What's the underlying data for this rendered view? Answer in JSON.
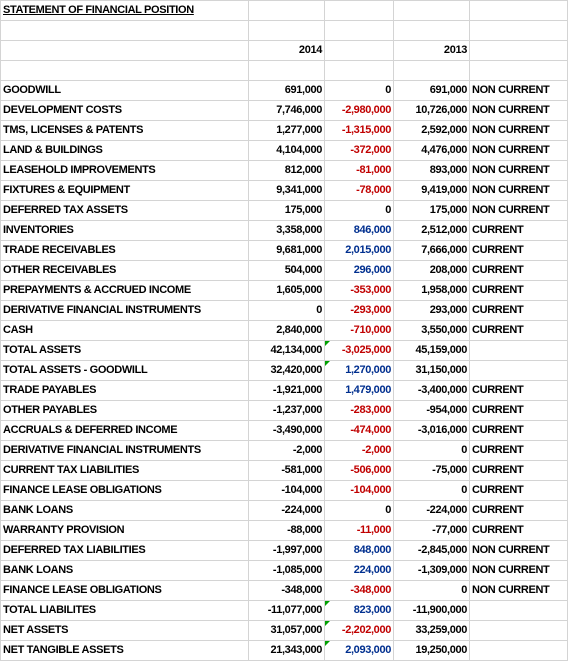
{
  "sheet": {
    "title": "STATEMENT OF FINANCIAL POSITION",
    "header": {
      "col_2014": "2014",
      "col_2013": "2013"
    },
    "rows": [
      {
        "label": "GOODWILL",
        "y2014": "691,000",
        "change": "0",
        "y2013": "691,000",
        "class": "NON CURRENT",
        "tone": "zero",
        "flag": false
      },
      {
        "label": "DEVELOPMENT COSTS",
        "y2014": "7,746,000",
        "change": "-2,980,000",
        "y2013": "10,726,000",
        "class": "NON CURRENT",
        "tone": "neg",
        "flag": false
      },
      {
        "label": "TMS, LICENSES & PATENTS",
        "y2014": "1,277,000",
        "change": "-1,315,000",
        "y2013": "2,592,000",
        "class": "NON CURRENT",
        "tone": "neg",
        "flag": false
      },
      {
        "label": "LAND & BUILDINGS",
        "y2014": "4,104,000",
        "change": "-372,000",
        "y2013": "4,476,000",
        "class": "NON CURRENT",
        "tone": "neg",
        "flag": false
      },
      {
        "label": "LEASEHOLD IMPROVEMENTS",
        "y2014": "812,000",
        "change": "-81,000",
        "y2013": "893,000",
        "class": "NON CURRENT",
        "tone": "neg",
        "flag": false
      },
      {
        "label": "FIXTURES & EQUIPMENT",
        "y2014": "9,341,000",
        "change": "-78,000",
        "y2013": "9,419,000",
        "class": "NON CURRENT",
        "tone": "neg",
        "flag": false
      },
      {
        "label": "DEFERRED TAX ASSETS",
        "y2014": "175,000",
        "change": "0",
        "y2013": "175,000",
        "class": "NON CURRENT",
        "tone": "zero",
        "flag": false
      },
      {
        "label": "INVENTORIES",
        "y2014": "3,358,000",
        "change": "846,000",
        "y2013": "2,512,000",
        "class": "CURRENT",
        "tone": "pos",
        "flag": false
      },
      {
        "label": "TRADE RECEIVABLES",
        "y2014": "9,681,000",
        "change": "2,015,000",
        "y2013": "7,666,000",
        "class": "CURRENT",
        "tone": "pos",
        "flag": false
      },
      {
        "label": "OTHER RECEIVABLES",
        "y2014": "504,000",
        "change": "296,000",
        "y2013": "208,000",
        "class": "CURRENT",
        "tone": "pos",
        "flag": false
      },
      {
        "label": "PREPAYMENTS & ACCRUED INCOME",
        "y2014": "1,605,000",
        "change": "-353,000",
        "y2013": "1,958,000",
        "class": "CURRENT",
        "tone": "neg",
        "flag": false
      },
      {
        "label": "DERIVATIVE FINANCIAL INSTRUMENTS",
        "y2014": "0",
        "change": "-293,000",
        "y2013": "293,000",
        "class": "CURRENT",
        "tone": "neg",
        "flag": false
      },
      {
        "label": "CASH",
        "y2014": "2,840,000",
        "change": "-710,000",
        "y2013": "3,550,000",
        "class": "CURRENT",
        "tone": "neg",
        "flag": false
      },
      {
        "label": "TOTAL ASSETS",
        "y2014": "42,134,000",
        "change": "-3,025,000",
        "y2013": "45,159,000",
        "class": "",
        "tone": "neg",
        "flag": true
      },
      {
        "label": "TOTAL ASSETS - GOODWILL",
        "y2014": "32,420,000",
        "change": "1,270,000",
        "y2013": "31,150,000",
        "class": "",
        "tone": "pos",
        "flag": true
      },
      {
        "label": "TRADE PAYABLES",
        "y2014": "-1,921,000",
        "change": "1,479,000",
        "y2013": "-3,400,000",
        "class": "CURRENT",
        "tone": "pos",
        "flag": false
      },
      {
        "label": "OTHER PAYABLES",
        "y2014": "-1,237,000",
        "change": "-283,000",
        "y2013": "-954,000",
        "class": "CURRENT",
        "tone": "neg",
        "flag": false
      },
      {
        "label": "ACCRUALS & DEFERRED INCOME",
        "y2014": "-3,490,000",
        "change": "-474,000",
        "y2013": "-3,016,000",
        "class": "CURRENT",
        "tone": "neg",
        "flag": false
      },
      {
        "label": "DERIVATIVE FINANCIAL INSTRUMENTS",
        "y2014": "-2,000",
        "change": "-2,000",
        "y2013": "0",
        "class": "CURRENT",
        "tone": "neg",
        "flag": false
      },
      {
        "label": "CURRENT TAX LIABILITIES",
        "y2014": "-581,000",
        "change": "-506,000",
        "y2013": "-75,000",
        "class": "CURRENT",
        "tone": "neg",
        "flag": false
      },
      {
        "label": "FINANCE LEASE OBLIGATIONS",
        "y2014": "-104,000",
        "change": "-104,000",
        "y2013": "0",
        "class": "CURRENT",
        "tone": "neg",
        "flag": false
      },
      {
        "label": "BANK LOANS",
        "y2014": "-224,000",
        "change": "0",
        "y2013": "-224,000",
        "class": "CURRENT",
        "tone": "zero",
        "flag": false
      },
      {
        "label": "WARRANTY PROVISION",
        "y2014": "-88,000",
        "change": "-11,000",
        "y2013": "-77,000",
        "class": "CURRENT",
        "tone": "neg",
        "flag": false
      },
      {
        "label": "DEFERRED TAX LIABILITIES",
        "y2014": "-1,997,000",
        "change": "848,000",
        "y2013": "-2,845,000",
        "class": "NON CURRENT",
        "tone": "pos",
        "flag": false
      },
      {
        "label": "BANK LOANS",
        "y2014": "-1,085,000",
        "change": "224,000",
        "y2013": "-1,309,000",
        "class": "NON CURRENT",
        "tone": "pos",
        "flag": false
      },
      {
        "label": "FINANCE LEASE OBLIGATIONS",
        "y2014": "-348,000",
        "change": "-348,000",
        "y2013": "0",
        "class": "NON CURRENT",
        "tone": "neg",
        "flag": false
      },
      {
        "label": "TOTAL LIABILITES",
        "y2014": "-11,077,000",
        "change": "823,000",
        "y2013": "-11,900,000",
        "class": "",
        "tone": "pos",
        "flag": true
      },
      {
        "label": "NET ASSETS",
        "y2014": "31,057,000",
        "change": "-2,202,000",
        "y2013": "33,259,000",
        "class": "",
        "tone": "neg",
        "flag": true
      },
      {
        "label": "NET TANGIBLE ASSETS",
        "y2014": "21,343,000",
        "change": "2,093,000",
        "y2013": "19,250,000",
        "class": "",
        "tone": "pos",
        "flag": true
      }
    ]
  },
  "colors": {
    "negative_change": "#c00000",
    "positive_change": "#002f8f",
    "grid_lines": "#d4d4d4",
    "error_indicator": "#00a000"
  }
}
